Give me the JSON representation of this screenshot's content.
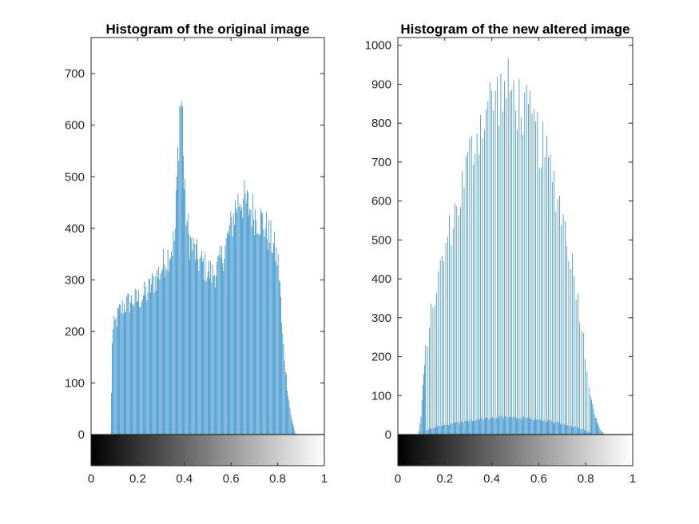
{
  "chart_data": [
    {
      "type": "bar",
      "title": "Histogram of the original image",
      "xlabel": "",
      "ylabel": "",
      "xlim": [
        0,
        1
      ],
      "ylim": [
        0,
        770
      ],
      "xticks": [
        "0",
        "0.2",
        "0.4",
        "0.6",
        "0.8",
        "1"
      ],
      "yticks": [
        "0",
        "100",
        "200",
        "300",
        "400",
        "500",
        "600",
        "700"
      ],
      "bar_color": "#0072BD",
      "colorbar": "grayscale 0 (black) to 1 (white)",
      "grid": false,
      "profile": [
        [
          0.085,
          0
        ],
        [
          0.092,
          190
        ],
        [
          0.1,
          210
        ],
        [
          0.12,
          235
        ],
        [
          0.14,
          250
        ],
        [
          0.16,
          255
        ],
        [
          0.18,
          260
        ],
        [
          0.2,
          262
        ],
        [
          0.22,
          268
        ],
        [
          0.24,
          275
        ],
        [
          0.26,
          290
        ],
        [
          0.28,
          305
        ],
        [
          0.3,
          320
        ],
        [
          0.32,
          340
        ],
        [
          0.34,
          355
        ],
        [
          0.36,
          380
        ],
        [
          0.375,
          560
        ],
        [
          0.38,
          630
        ],
        [
          0.388,
          650
        ],
        [
          0.395,
          600
        ],
        [
          0.4,
          480
        ],
        [
          0.41,
          420
        ],
        [
          0.42,
          380
        ],
        [
          0.44,
          360
        ],
        [
          0.46,
          340
        ],
        [
          0.48,
          330
        ],
        [
          0.5,
          320
        ],
        [
          0.52,
          310
        ],
        [
          0.54,
          320
        ],
        [
          0.56,
          340
        ],
        [
          0.58,
          370
        ],
        [
          0.6,
          400
        ],
        [
          0.62,
          440
        ],
        [
          0.64,
          460
        ],
        [
          0.66,
          450
        ],
        [
          0.68,
          440
        ],
        [
          0.7,
          430
        ],
        [
          0.72,
          420
        ],
        [
          0.74,
          410
        ],
        [
          0.76,
          390
        ],
        [
          0.78,
          370
        ],
        [
          0.8,
          340
        ],
        [
          0.81,
          300
        ],
        [
          0.82,
          200
        ],
        [
          0.84,
          100
        ],
        [
          0.86,
          30
        ],
        [
          0.875,
          5
        ],
        [
          0.88,
          0
        ]
      ]
    },
    {
      "type": "bar",
      "title": "Histogram of the new altered image",
      "xlabel": "",
      "ylabel": "",
      "xlim": [
        0,
        1
      ],
      "ylim": [
        0,
        1020
      ],
      "xticks": [
        "0",
        "0.2",
        "0.4",
        "0.6",
        "0.8",
        "1"
      ],
      "yticks": [
        "0",
        "100",
        "200",
        "300",
        "400",
        "500",
        "600",
        "700",
        "800",
        "900",
        "1000"
      ],
      "bar_color": "#0072BD",
      "colorbar": "grayscale 0 (black) to 1 (white)",
      "grid": false,
      "profile": [
        [
          0.09,
          0
        ],
        [
          0.1,
          50
        ],
        [
          0.11,
          140
        ],
        [
          0.12,
          220
        ],
        [
          0.14,
          300
        ],
        [
          0.16,
          360
        ],
        [
          0.18,
          420
        ],
        [
          0.2,
          470
        ],
        [
          0.22,
          520
        ],
        [
          0.24,
          560
        ],
        [
          0.26,
          600
        ],
        [
          0.28,
          650
        ],
        [
          0.3,
          700
        ],
        [
          0.32,
          740
        ],
        [
          0.34,
          780
        ],
        [
          0.36,
          810
        ],
        [
          0.38,
          840
        ],
        [
          0.4,
          860
        ],
        [
          0.42,
          870
        ],
        [
          0.44,
          875
        ],
        [
          0.46,
          880
        ],
        [
          0.48,
          885
        ],
        [
          0.5,
          870
        ],
        [
          0.52,
          850
        ],
        [
          0.54,
          830
        ],
        [
          0.56,
          810
        ],
        [
          0.58,
          790
        ],
        [
          0.6,
          760
        ],
        [
          0.62,
          730
        ],
        [
          0.64,
          700
        ],
        [
          0.66,
          660
        ],
        [
          0.68,
          620
        ],
        [
          0.7,
          570
        ],
        [
          0.72,
          510
        ],
        [
          0.74,
          450
        ],
        [
          0.76,
          380
        ],
        [
          0.78,
          300
        ],
        [
          0.8,
          200
        ],
        [
          0.82,
          110
        ],
        [
          0.84,
          50
        ],
        [
          0.86,
          15
        ],
        [
          0.88,
          0
        ]
      ]
    }
  ]
}
